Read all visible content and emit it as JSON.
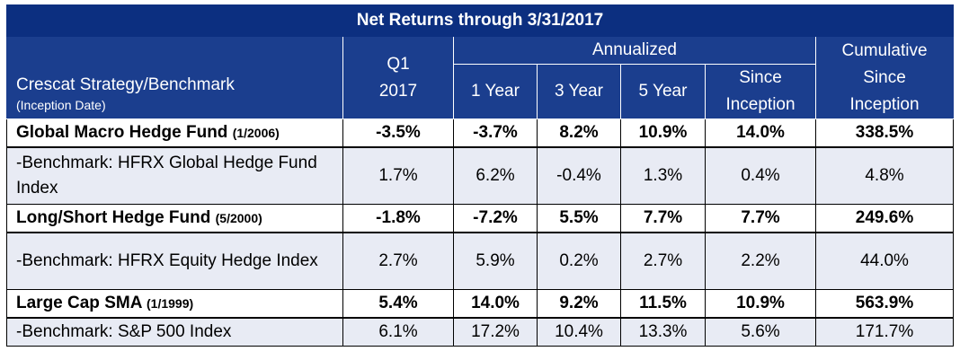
{
  "title": "Net Returns through 3/31/2017",
  "header": {
    "strategy": "Crescat Strategy/Benchmark",
    "inception": "(Inception Date)",
    "q1_line1": "Q1",
    "q1_line2": "2017",
    "annualized": "Annualized",
    "y1": "1 Year",
    "y3": "3 Year",
    "y5": "5 Year",
    "since_line1": "Since",
    "since_line2": "Inception",
    "cum_line1": "Cumulative",
    "cum_line2": "Since",
    "cum_line3": "Inception"
  },
  "rows": [
    {
      "name": "Global Macro Hedge Fund",
      "date": "(1/2006)",
      "q1": "-3.5%",
      "y1": "-3.7%",
      "y3": "8.2%",
      "y5": "10.9%",
      "since": "14.0%",
      "cum": "338.5%"
    },
    {
      "name": "-Benchmark: HFRX Global Hedge Fund Index",
      "q1": "1.7%",
      "y1": "6.2%",
      "y3": "-0.4%",
      "y5": "1.3%",
      "since": "0.4%",
      "cum": "4.8%"
    },
    {
      "name": "Long/Short Hedge Fund",
      "date": "(5/2000)",
      "q1": "-1.8%",
      "y1": "-7.2%",
      "y3": "5.5%",
      "y5": "7.7%",
      "since": "7.7%",
      "cum": "249.6%"
    },
    {
      "name": "-Benchmark: HFRX Equity Hedge Index",
      "q1": "2.7%",
      "y1": "5.9%",
      "y3": "0.2%",
      "y5": "2.7%",
      "since": "2.2%",
      "cum": "44.0%"
    },
    {
      "name": "Large Cap SMA",
      "date": "(1/1999)",
      "q1": "5.4%",
      "y1": "14.0%",
      "y3": "9.2%",
      "y5": "11.5%",
      "since": "10.9%",
      "cum": "563.9%"
    },
    {
      "name": "-Benchmark: S&P 500 Index",
      "q1": "6.1%",
      "y1": "17.2%",
      "y3": "10.4%",
      "y5": "13.3%",
      "since": "5.6%",
      "cum": "171.7%"
    }
  ]
}
